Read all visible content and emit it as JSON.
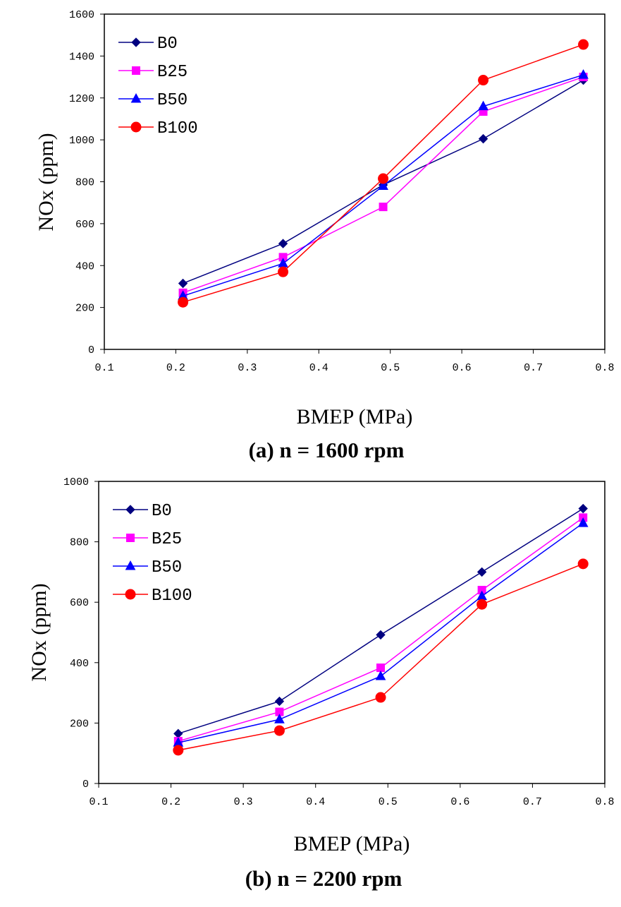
{
  "chart_data": [
    {
      "type": "line",
      "title": "(a) n = 1600 rpm",
      "x_label": "BMEP (MPa)",
      "y_label": "NOx (ppm)",
      "x": [
        0.21,
        0.35,
        0.49,
        0.63,
        0.77
      ],
      "xlim": [
        0.1,
        0.8
      ],
      "xticks": [
        0.1,
        0.2,
        0.3,
        0.4,
        0.5,
        0.6,
        0.7,
        0.8
      ],
      "ylim": [
        0,
        1600
      ],
      "yticks": [
        0,
        200,
        400,
        600,
        800,
        1000,
        1200,
        1400,
        1600
      ],
      "legend": "upper-left",
      "series": [
        {
          "name": "B0",
          "color": "#000080",
          "marker": "diamond",
          "values": [
            315,
            505,
            785,
            1005,
            1285
          ]
        },
        {
          "name": "B25",
          "color": "#ff00ff",
          "marker": "square",
          "values": [
            270,
            440,
            680,
            1135,
            1300
          ]
        },
        {
          "name": "B50",
          "color": "#0000ff",
          "marker": "triangle",
          "values": [
            255,
            410,
            780,
            1160,
            1310
          ]
        },
        {
          "name": "B100",
          "color": "#ff0000",
          "marker": "circle",
          "values": [
            225,
            370,
            815,
            1285,
            1455
          ]
        }
      ]
    },
    {
      "type": "line",
      "title": "(b) n = 2200 rpm",
      "x_label": "BMEP (MPa)",
      "y_label": "NOx (ppm)",
      "x": [
        0.21,
        0.35,
        0.49,
        0.63,
        0.77
      ],
      "xlim": [
        0.1,
        0.8
      ],
      "xticks": [
        0.1,
        0.2,
        0.3,
        0.4,
        0.5,
        0.6,
        0.7,
        0.8
      ],
      "ylim": [
        0,
        1000
      ],
      "yticks": [
        0,
        200,
        400,
        600,
        800,
        1000
      ],
      "legend": "upper-left",
      "series": [
        {
          "name": "B0",
          "color": "#000080",
          "marker": "diamond",
          "values": [
            165,
            272,
            492,
            700,
            910
          ]
        },
        {
          "name": "B25",
          "color": "#ff00ff",
          "marker": "square",
          "values": [
            140,
            237,
            383,
            640,
            880
          ]
        },
        {
          "name": "B50",
          "color": "#0000ff",
          "marker": "triangle",
          "values": [
            135,
            212,
            355,
            620,
            862
          ]
        },
        {
          "name": "B100",
          "color": "#ff0000",
          "marker": "circle",
          "values": [
            110,
            175,
            285,
            593,
            727
          ]
        }
      ]
    }
  ]
}
